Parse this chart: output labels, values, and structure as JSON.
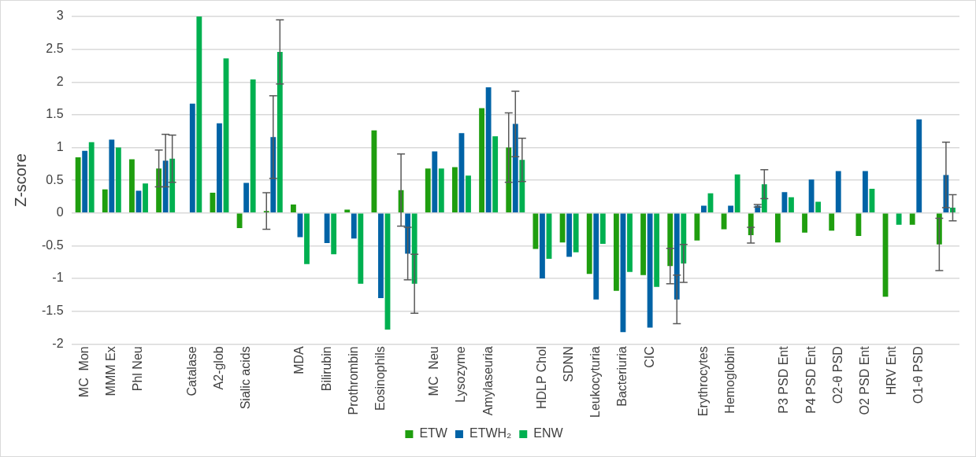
{
  "chart_data": {
    "type": "bar",
    "ylabel": "Z-score",
    "categories": [
      "MC  Mon",
      "MMM Ex",
      "Phl Neu",
      null,
      "Catalase",
      "A2-glob",
      "Sialic acids",
      null,
      "MDA",
      "Bilirubin",
      "Prothrombin",
      "Eosinophils",
      null,
      "MC  Neu",
      "Lysozyme",
      "Amylaseuria",
      null,
      "HDLP Chol",
      "SDNN",
      "Leukocyturia",
      "Bacteriuria",
      "CIC",
      null,
      "Erythrocytes",
      "Hemoglobin",
      null,
      "P3 PSD Ent",
      "P4 PSD Ent",
      "O2-θ PSD",
      "O2 PSD Ent",
      "HRV Ent",
      "O1-θ PSD",
      null
    ],
    "series": [
      {
        "name": "ETW",
        "color": "#1f9e0f",
        "values": [
          0.85,
          0.36,
          0.82,
          0.68,
          null,
          0.31,
          -0.23,
          0.03,
          0.13,
          null,
          0.05,
          1.26,
          0.35,
          0.68,
          0.7,
          1.6,
          1.0,
          -0.55,
          -0.45,
          -0.93,
          -1.19,
          -0.95,
          -0.81,
          -0.42,
          -0.25,
          -0.34,
          -0.45,
          -0.3,
          -0.27,
          -0.35,
          -1.28,
          -0.18,
          -0.48
        ],
        "errors": [
          null,
          null,
          null,
          0.28,
          null,
          null,
          null,
          0.28,
          null,
          null,
          null,
          null,
          0.55,
          null,
          null,
          null,
          0.53,
          null,
          null,
          null,
          null,
          null,
          0.27,
          null,
          null,
          0.12,
          null,
          null,
          null,
          null,
          null,
          null,
          0.4
        ]
      },
      {
        "name": "ETWH₂",
        "color": "#0063a6",
        "values": [
          0.95,
          1.12,
          0.34,
          0.8,
          1.67,
          1.37,
          0.46,
          1.16,
          -0.37,
          -0.46,
          -0.39,
          -1.3,
          -0.62,
          0.94,
          1.22,
          1.92,
          1.36,
          -1.0,
          -0.67,
          -1.32,
          -1.82,
          -1.75,
          -1.32,
          0.11,
          0.11,
          0.11,
          0.32,
          0.51,
          0.64,
          0.64,
          null,
          1.43,
          0.58
        ],
        "errors": [
          null,
          null,
          null,
          0.4,
          null,
          null,
          null,
          0.63,
          null,
          null,
          null,
          null,
          0.4,
          null,
          null,
          null,
          0.5,
          null,
          null,
          null,
          null,
          null,
          0.37,
          null,
          null,
          0.02,
          null,
          null,
          null,
          null,
          null,
          null,
          0.5
        ]
      },
      {
        "name": "ENW",
        "color": "#00b050",
        "values": [
          1.08,
          1.0,
          0.45,
          0.83,
          3.0,
          2.36,
          2.04,
          2.46,
          -0.78,
          -0.63,
          -1.08,
          -1.78,
          -1.08,
          0.68,
          0.57,
          1.17,
          0.81,
          -0.7,
          -0.6,
          -0.47,
          -0.9,
          -1.13,
          -0.77,
          0.3,
          0.59,
          0.44,
          0.24,
          0.17,
          null,
          0.37,
          -0.18,
          null,
          0.08
        ],
        "errors": [
          null,
          null,
          null,
          0.36,
          null,
          null,
          null,
          0.49,
          null,
          null,
          null,
          null,
          0.45,
          null,
          null,
          null,
          0.33,
          null,
          null,
          null,
          null,
          null,
          0.29,
          null,
          null,
          0.22,
          null,
          null,
          null,
          null,
          null,
          null,
          0.2
        ]
      }
    ],
    "ylim": [
      -2,
      3
    ],
    "yticks": [
      -2,
      -1.5,
      -1,
      -0.5,
      0,
      0.5,
      1,
      1.5,
      2,
      2.5,
      3
    ],
    "grid": "y",
    "legend": "bottom"
  }
}
